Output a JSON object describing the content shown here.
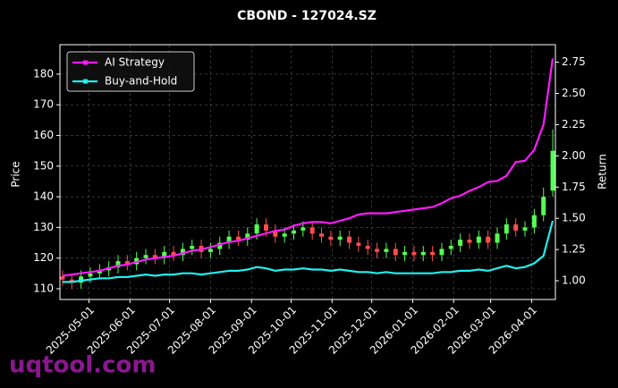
{
  "chart_data": {
    "type": "candlestick",
    "title": "CBOND - 127024.SZ",
    "watermark": "uqtool.com",
    "y_label": "Price",
    "y2_label": "Return",
    "x": [
      "2025-04-11",
      "2025-04-18",
      "2025-04-25",
      "2025-05-02",
      "2025-05-09",
      "2025-05-16",
      "2025-05-23",
      "2025-05-30",
      "2025-06-06",
      "2025-06-13",
      "2025-06-20",
      "2025-06-27",
      "2025-07-04",
      "2025-07-11",
      "2025-07-18",
      "2025-07-25",
      "2025-08-01",
      "2025-08-08",
      "2025-08-15",
      "2025-08-22",
      "2025-08-29",
      "2025-09-05",
      "2025-09-12",
      "2025-09-19",
      "2025-09-26",
      "2025-10-03",
      "2025-10-10",
      "2025-10-17",
      "2025-10-24",
      "2025-10-31",
      "2025-11-07",
      "2025-11-14",
      "2025-11-21",
      "2025-11-28",
      "2025-12-05",
      "2025-12-12",
      "2025-12-19",
      "2025-12-26",
      "2026-01-02",
      "2026-01-09",
      "2026-01-16",
      "2026-01-23",
      "2026-01-30",
      "2026-02-06",
      "2026-02-13",
      "2026-02-20",
      "2026-02-27",
      "2026-03-06",
      "2026-03-13",
      "2026-03-20",
      "2026-03-27",
      "2026-04-03",
      "2026-04-10",
      "2026-04-17"
    ],
    "xlim": [
      "2025-04-09",
      "2026-04-19"
    ],
    "xticks": [
      "2025-05-01",
      "2025-06-01",
      "2025-07-01",
      "2025-08-01",
      "2025-09-01",
      "2025-10-01",
      "2025-11-01",
      "2025-12-01",
      "2026-01-01",
      "2026-02-01",
      "2026-03-01",
      "2026-04-01"
    ],
    "candles": {
      "up_color": "#55ff55",
      "down_color": "#ff4d4d",
      "open": [
        114,
        113,
        112,
        114,
        115,
        116,
        117,
        119,
        118,
        120,
        121,
        120,
        122,
        121,
        123,
        124,
        122,
        123,
        125,
        127,
        126,
        128,
        131,
        129,
        127,
        128,
        129,
        130,
        128,
        127,
        126,
        127,
        125,
        124,
        123,
        122,
        123,
        121,
        122,
        121,
        122,
        121,
        123,
        124,
        126,
        125,
        127,
        125,
        128,
        131,
        129,
        130,
        134,
        142
      ],
      "high": [
        116,
        115,
        116,
        117,
        118,
        119,
        121,
        121,
        122,
        123,
        123,
        124,
        124,
        125,
        126,
        126,
        125,
        127,
        129,
        129,
        130,
        133,
        133,
        131,
        130,
        131,
        132,
        132,
        130,
        129,
        129,
        129,
        127,
        126,
        125,
        125,
        125,
        124,
        124,
        124,
        124,
        125,
        126,
        128,
        128,
        129,
        129,
        130,
        133,
        133,
        132,
        136,
        143,
        162
      ],
      "low": [
        111,
        110,
        110,
        112,
        113,
        114,
        115,
        116,
        116,
        118,
        118,
        118,
        119,
        119,
        121,
        120,
        120,
        121,
        123,
        124,
        124,
        126,
        127,
        125,
        125,
        126,
        127,
        126,
        125,
        124,
        124,
        123,
        122,
        121,
        120,
        120,
        119,
        119,
        119,
        119,
        119,
        119,
        121,
        122,
        123,
        123,
        123,
        123,
        126,
        127,
        127,
        128,
        132,
        140
      ],
      "close": [
        113,
        112,
        114,
        115,
        116,
        117,
        119,
        118,
        120,
        121,
        120,
        122,
        121,
        123,
        124,
        122,
        123,
        125,
        127,
        126,
        128,
        131,
        129,
        127,
        128,
        129,
        130,
        128,
        127,
        126,
        127,
        125,
        124,
        123,
        122,
        123,
        121,
        122,
        121,
        122,
        121,
        123,
        124,
        126,
        125,
        127,
        125,
        128,
        131,
        129,
        130,
        134,
        140,
        155
      ]
    },
    "series": [
      {
        "name": "AI Strategy",
        "color": "#ff1aff",
        "axis": "y2",
        "values": [
          1.04,
          1.05,
          1.06,
          1.07,
          1.08,
          1.1,
          1.12,
          1.13,
          1.15,
          1.17,
          1.18,
          1.19,
          1.2,
          1.22,
          1.24,
          1.25,
          1.27,
          1.29,
          1.31,
          1.32,
          1.34,
          1.36,
          1.38,
          1.4,
          1.41,
          1.44,
          1.46,
          1.47,
          1.47,
          1.46,
          1.48,
          1.5,
          1.53,
          1.54,
          1.54,
          1.54,
          1.55,
          1.56,
          1.57,
          1.58,
          1.59,
          1.62,
          1.66,
          1.68,
          1.72,
          1.75,
          1.79,
          1.8,
          1.84,
          1.95,
          1.96,
          2.05,
          2.25,
          2.78
        ]
      },
      {
        "name": "Buy-and-Hold",
        "color": "#22eeee",
        "axis": "y2",
        "values": [
          0.99,
          0.99,
          1.0,
          1.01,
          1.02,
          1.02,
          1.03,
          1.03,
          1.04,
          1.05,
          1.04,
          1.05,
          1.05,
          1.06,
          1.06,
          1.05,
          1.06,
          1.07,
          1.08,
          1.08,
          1.09,
          1.11,
          1.1,
          1.08,
          1.09,
          1.09,
          1.1,
          1.09,
          1.09,
          1.08,
          1.09,
          1.08,
          1.07,
          1.07,
          1.06,
          1.07,
          1.06,
          1.06,
          1.06,
          1.06,
          1.06,
          1.07,
          1.07,
          1.08,
          1.08,
          1.09,
          1.08,
          1.1,
          1.12,
          1.1,
          1.11,
          1.14,
          1.2,
          1.48
        ]
      }
    ],
    "ylim": [
      106.5,
      189.6
    ],
    "yticks": [
      110,
      120,
      130,
      140,
      150,
      160,
      170,
      180
    ],
    "y2lim": [
      0.85,
      2.89
    ],
    "y2ticks": [
      {
        "value": 1.0,
        "label": "1.00"
      },
      {
        "value": 1.25,
        "label": "1.25"
      },
      {
        "value": 1.5,
        "label": "1.50"
      },
      {
        "value": 1.75,
        "label": "1.75"
      },
      {
        "value": 2.0,
        "label": "2.00"
      },
      {
        "value": 2.25,
        "label": "2.25"
      },
      {
        "value": 2.5,
        "label": "2.50"
      },
      {
        "value": 2.75,
        "label": "2.75"
      }
    ],
    "grid": true,
    "legend": "upper-left"
  }
}
